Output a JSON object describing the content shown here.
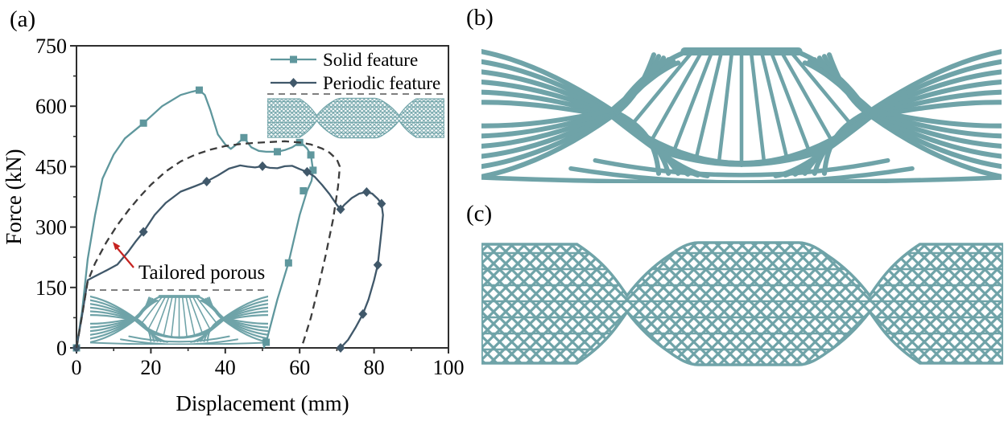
{
  "figure": {
    "panel_labels": {
      "a": "(a)",
      "b": "(b)",
      "c": "(c)"
    }
  },
  "colors": {
    "background": "#ffffff",
    "frame": "#2e2e2e",
    "text": "#000000",
    "structure_teal": "#6FA3A8",
    "solid_curve_teal": "#5F979D",
    "periodic_curve_slate": "#40586A",
    "dashed_curve_gray": "#3C3C3C",
    "arrow_red": "#C62320",
    "inset_dash_gray": "#555555"
  },
  "chart_data": {
    "type": "line",
    "title": "",
    "xlabel": "Displacement (mm)",
    "ylabel": "Force (kN)",
    "xlim": [
      0,
      100
    ],
    "ylim": [
      0,
      750
    ],
    "x_major_ticks": [
      0,
      20,
      40,
      60,
      80,
      100
    ],
    "x_minor_ticks": [
      10,
      30,
      50,
      70,
      90
    ],
    "y_major_ticks": [
      0,
      150,
      300,
      450,
      600,
      750
    ],
    "y_minor_ticks": [
      75,
      225,
      375,
      525,
      675
    ],
    "grid": false,
    "legend": {
      "position": "top-right-inside",
      "entries": [
        "Solid feature",
        "Periodic feature"
      ]
    },
    "annotation": {
      "text": "Tailored porous"
    },
    "series": [
      {
        "id": "solid-feature",
        "name": "Solid feature",
        "color": "#5F979D",
        "marker": "square",
        "linestyle": "solid",
        "x": [
          0,
          1.5,
          3,
          5,
          7,
          10,
          13,
          18,
          23,
          28,
          31,
          33,
          34.5,
          36,
          38,
          40,
          41.5,
          43,
          45,
          47,
          49,
          51,
          54,
          56,
          58,
          60,
          61,
          62,
          63,
          63.6,
          63.2,
          62,
          60,
          57,
          54,
          51,
          50.3
        ],
        "y": [
          0,
          90,
          220,
          330,
          420,
          480,
          520,
          558,
          600,
          628,
          636,
          640,
          628,
          590,
          530,
          505,
          494,
          505,
          522,
          498,
          489,
          487,
          487,
          491,
          498,
          510,
          504,
          495,
          479,
          441,
          415,
          390,
          330,
          211,
          120,
          14,
          0
        ],
        "marker_x": [
          0,
          18,
          33,
          45,
          54,
          60,
          63,
          63.6,
          61,
          57,
          51
        ],
        "marker_y": [
          0,
          558,
          640,
          522,
          487,
          510,
          479,
          441,
          390,
          211,
          14
        ]
      },
      {
        "id": "periodic-feature",
        "name": "Periodic feature",
        "color": "#40586A",
        "marker": "diamond",
        "linestyle": "solid",
        "x": [
          0,
          1.5,
          3,
          5,
          8,
          11,
          14,
          16,
          18,
          21,
          24,
          28,
          32,
          35,
          38,
          41,
          44,
          46,
          48,
          50,
          52,
          54,
          56,
          58,
          60,
          62,
          64,
          66,
          68,
          70,
          71,
          72,
          74,
          76,
          78,
          79.5,
          81,
          82,
          82.4,
          82,
          81,
          80,
          78.5,
          77,
          75,
          73,
          71
        ],
        "y": [
          0,
          80,
          168,
          178,
          192,
          207,
          240,
          265,
          288,
          330,
          360,
          388,
          402,
          413,
          428,
          445,
          453,
          450,
          448,
          451,
          447,
          446,
          451,
          452,
          444,
          437,
          425,
          405,
          382,
          355,
          344,
          355,
          372,
          383,
          387,
          383,
          370,
          358,
          330,
          290,
          206,
          168,
          120,
          84,
          50,
          20,
          0
        ],
        "marker_x": [
          0,
          18,
          35,
          50,
          62,
          71,
          78,
          82,
          81,
          77,
          71
        ],
        "marker_y": [
          0,
          288,
          413,
          451,
          437,
          344,
          387,
          358,
          206,
          84,
          0
        ]
      },
      {
        "id": "tailored-porous",
        "name": "Tailored porous",
        "color": "#3C3C3C",
        "marker": "none",
        "linestyle": "dashed",
        "x": [
          0,
          1.5,
          3,
          5,
          8,
          11,
          14,
          17,
          20,
          24,
          28,
          32,
          36,
          40,
          44,
          48,
          52,
          56,
          60,
          63,
          66,
          68,
          70,
          70.8,
          70.3,
          69,
          67,
          65,
          63,
          61,
          60.3
        ],
        "y": [
          0,
          80,
          165,
          210,
          262,
          305,
          342,
          375,
          405,
          438,
          463,
          480,
          492,
          501,
          506,
          509,
          511,
          513,
          510,
          505,
          495,
          485,
          468,
          450,
          400,
          320,
          230,
          150,
          75,
          15,
          0
        ]
      }
    ]
  }
}
